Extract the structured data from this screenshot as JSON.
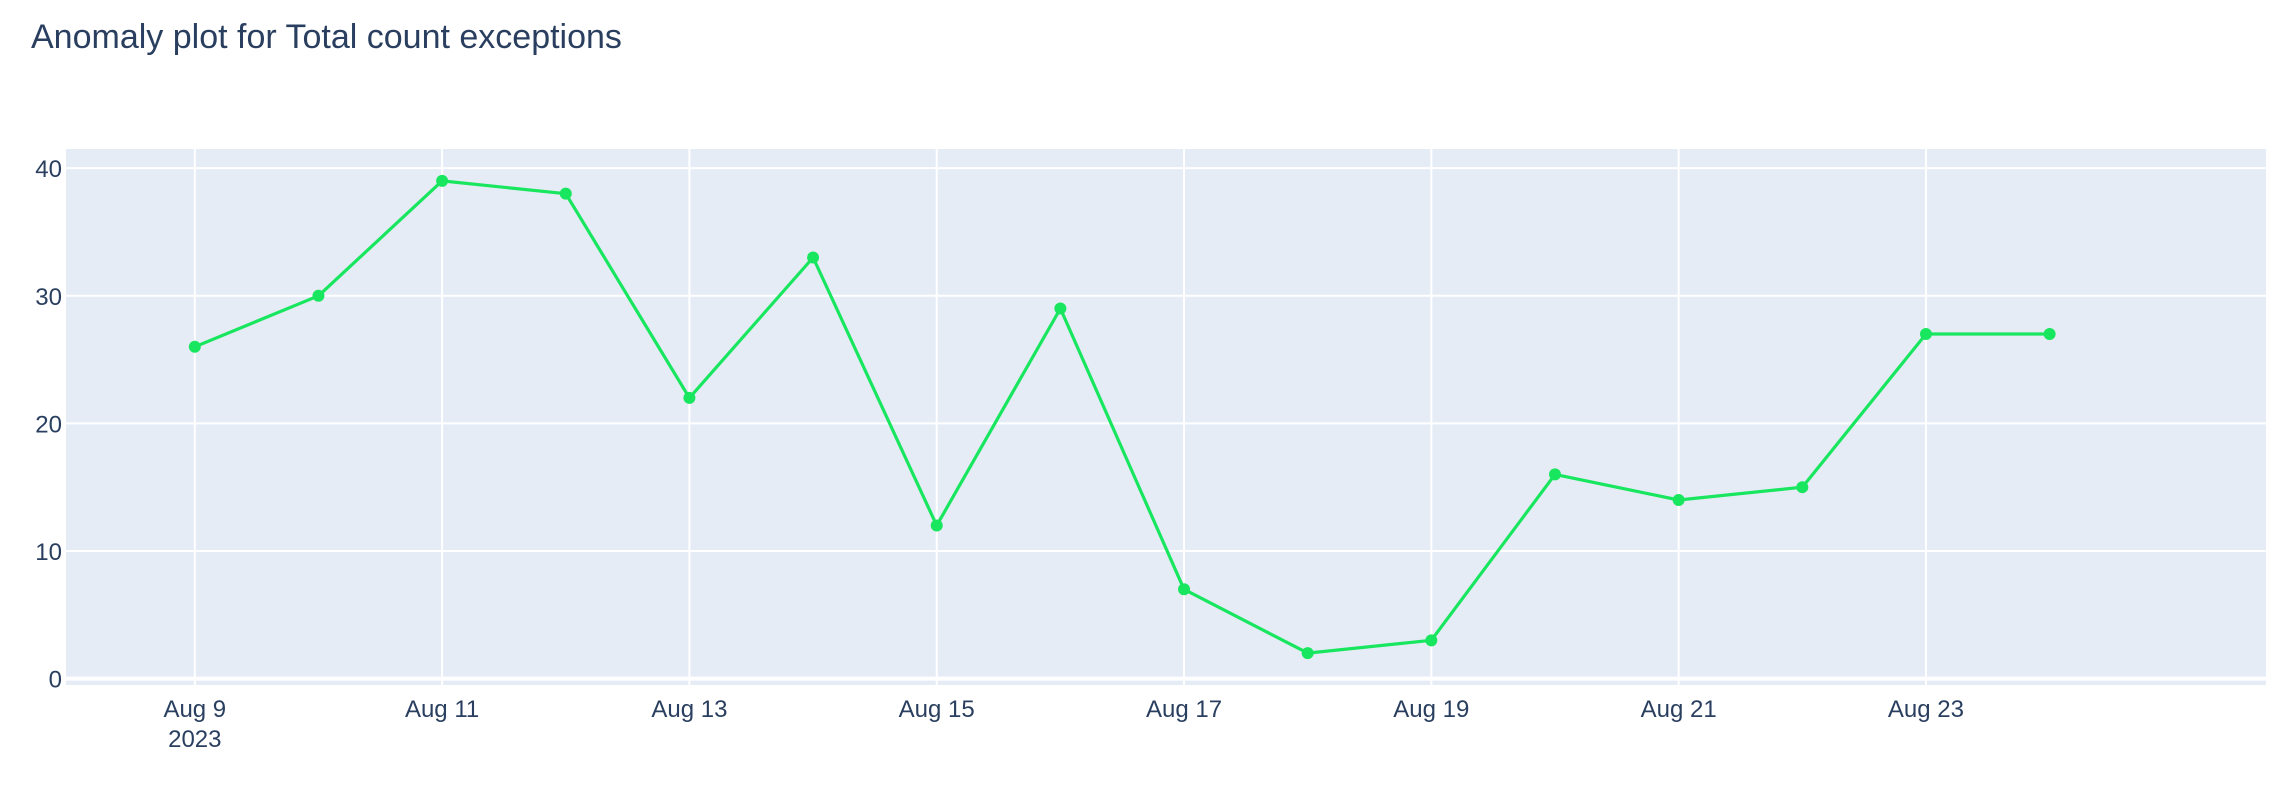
{
  "chart_data": {
    "type": "line",
    "title": "Anomaly plot for Total count exceptions",
    "xlabel": "",
    "ylabel": "",
    "x": [
      "2023-08-09",
      "2023-08-10",
      "2023-08-11",
      "2023-08-12",
      "2023-08-13",
      "2023-08-14",
      "2023-08-15",
      "2023-08-16",
      "2023-08-17",
      "2023-08-18",
      "2023-08-19",
      "2023-08-20",
      "2023-08-21",
      "2023-08-22",
      "2023-08-23",
      "2023-08-24"
    ],
    "series": [
      {
        "values": [
          26,
          30,
          39,
          38,
          22,
          33,
          12,
          29,
          7,
          2,
          3,
          16,
          14,
          15,
          27,
          27
        ],
        "color": "#19e65f"
      }
    ],
    "xlim": [
      "2023-08-07T23:00",
      "2023-08-25T18:00"
    ],
    "ylim": [
      -0.5,
      41.5
    ],
    "x_ticks": [
      {
        "x": "2023-08-09",
        "label": "Aug 9",
        "sublabel": "2023"
      },
      {
        "x": "2023-08-11",
        "label": "Aug 11"
      },
      {
        "x": "2023-08-13",
        "label": "Aug 13"
      },
      {
        "x": "2023-08-15",
        "label": "Aug 15"
      },
      {
        "x": "2023-08-17",
        "label": "Aug 17"
      },
      {
        "x": "2023-08-19",
        "label": "Aug 19"
      },
      {
        "x": "2023-08-21",
        "label": "Aug 21"
      },
      {
        "x": "2023-08-23",
        "label": "Aug 23"
      }
    ],
    "y_ticks": [
      0,
      10,
      20,
      30,
      40
    ],
    "grid": true,
    "legend": "none",
    "colors": {
      "plot_bg": "#e5ecf6",
      "grid": "#ffffff",
      "text": "#2a3f5f",
      "paper_bg": "#ffffff"
    }
  }
}
